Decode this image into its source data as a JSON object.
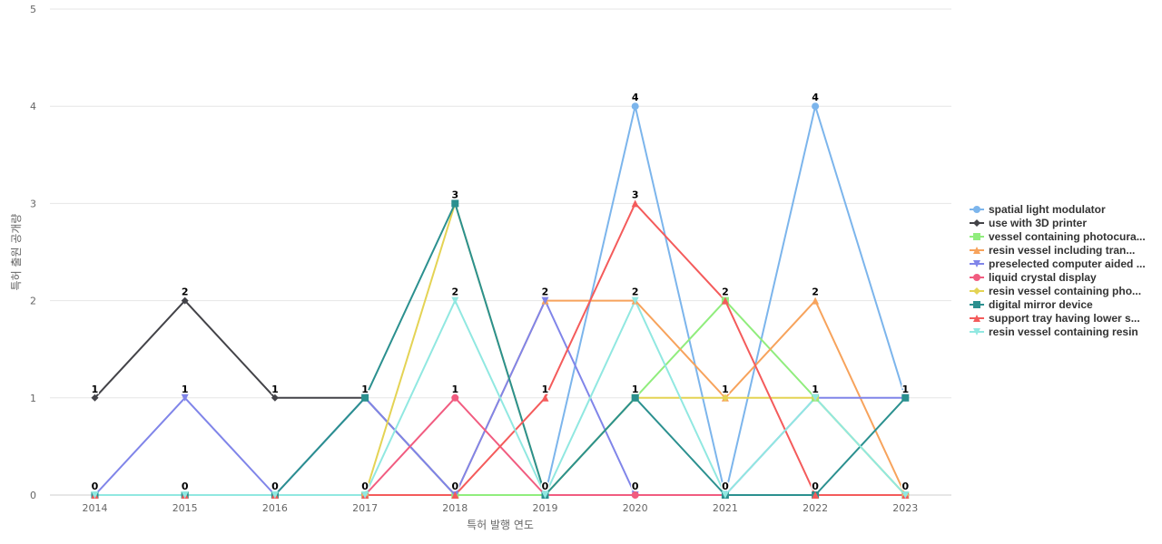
{
  "chart_data": {
    "type": "line",
    "xlabel": "특허 발행 연도",
    "ylabel": "특허 출원 공개량",
    "x": [
      "2014",
      "2015",
      "2016",
      "2017",
      "2018",
      "2019",
      "2020",
      "2021",
      "2022",
      "2023"
    ],
    "ylim": [
      0,
      5
    ],
    "yticks": [
      0,
      1,
      2,
      3,
      4,
      5
    ],
    "grid": true,
    "legend_position": "right",
    "series": [
      {
        "name": "spatial light modulator",
        "color": "#7cb5ec",
        "marker": "circle",
        "values": [
          0,
          0,
          0,
          0,
          0,
          0,
          4,
          0,
          4,
          1
        ]
      },
      {
        "name": "use with 3D printer",
        "color": "#434348",
        "marker": "diamond",
        "values": [
          1,
          2,
          1,
          1,
          0,
          0,
          0,
          0,
          0,
          0
        ]
      },
      {
        "name": "vessel containing photocura...",
        "color": "#90ed7d",
        "marker": "square",
        "values": [
          0,
          0,
          0,
          0,
          0,
          0,
          1,
          2,
          1,
          0
        ]
      },
      {
        "name": "resin vessel including tran...",
        "color": "#f7a35c",
        "marker": "triangle",
        "values": [
          0,
          0,
          0,
          0,
          0,
          2,
          2,
          1,
          2,
          0
        ]
      },
      {
        "name": "preselected computer aided ...",
        "color": "#8085e9",
        "marker": "triangle-down",
        "values": [
          0,
          1,
          0,
          1,
          0,
          2,
          0,
          0,
          1,
          1
        ]
      },
      {
        "name": "liquid crystal display",
        "color": "#f15c80",
        "marker": "circle",
        "values": [
          0,
          0,
          0,
          0,
          1,
          0,
          0,
          0,
          0,
          0
        ]
      },
      {
        "name": "resin vessel containing pho...",
        "color": "#e4d354",
        "marker": "diamond",
        "values": [
          0,
          0,
          0,
          0,
          3,
          0,
          1,
          1,
          1,
          0
        ]
      },
      {
        "name": "digital mirror device",
        "color": "#2b908f",
        "marker": "square",
        "values": [
          0,
          0,
          0,
          1,
          3,
          0,
          1,
          0,
          0,
          1
        ]
      },
      {
        "name": "support tray having lower s...",
        "color": "#f45b5b",
        "marker": "triangle",
        "values": [
          0,
          0,
          0,
          0,
          0,
          1,
          3,
          2,
          0,
          0
        ]
      },
      {
        "name": "resin vessel containing resin",
        "color": "#91e8e1",
        "marker": "triangle-down",
        "values": [
          0,
          0,
          0,
          0,
          2,
          0,
          2,
          0,
          1,
          0
        ]
      }
    ],
    "data_labels": [
      {
        "x": "2014",
        "y": 1
      },
      {
        "x": "2014",
        "y": 0
      },
      {
        "x": "2015",
        "y": 2
      },
      {
        "x": "2015",
        "y": 1
      },
      {
        "x": "2015",
        "y": 0
      },
      {
        "x": "2016",
        "y": 1
      },
      {
        "x": "2016",
        "y": 0
      },
      {
        "x": "2017",
        "y": 1
      },
      {
        "x": "2017",
        "y": 0
      },
      {
        "x": "2018",
        "y": 3
      },
      {
        "x": "2018",
        "y": 2
      },
      {
        "x": "2018",
        "y": 1
      },
      {
        "x": "2018",
        "y": 0
      },
      {
        "x": "2019",
        "y": 2
      },
      {
        "x": "2019",
        "y": 1
      },
      {
        "x": "2019",
        "y": 0
      },
      {
        "x": "2020",
        "y": 4
      },
      {
        "x": "2020",
        "y": 3
      },
      {
        "x": "2020",
        "y": 2
      },
      {
        "x": "2020",
        "y": 1
      },
      {
        "x": "2020",
        "y": 0
      },
      {
        "x": "2021",
        "y": 2
      },
      {
        "x": "2021",
        "y": 1
      },
      {
        "x": "2021",
        "y": 0
      },
      {
        "x": "2022",
        "y": 4
      },
      {
        "x": "2022",
        "y": 2
      },
      {
        "x": "2022",
        "y": 1
      },
      {
        "x": "2022",
        "y": 0
      },
      {
        "x": "2023",
        "y": 1
      },
      {
        "x": "2023",
        "y": 0
      }
    ]
  }
}
